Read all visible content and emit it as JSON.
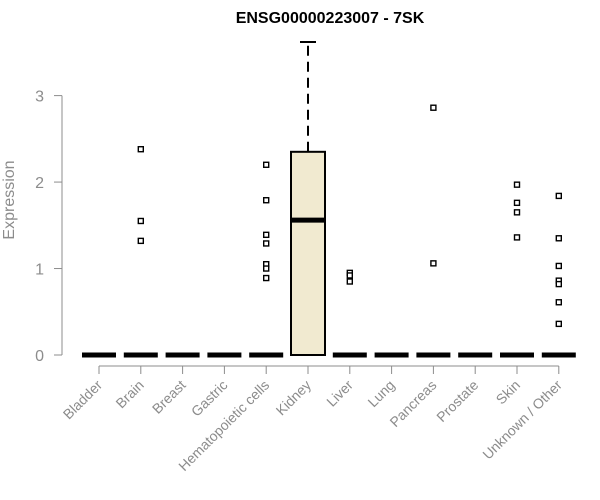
{
  "chart_data": {
    "type": "boxplot",
    "title": "ENSG00000223007 - 7SK",
    "xlabel": "",
    "ylabel": "Expression",
    "ylim": [
      0,
      3.62
    ],
    "yticks": [
      0,
      1,
      2,
      3
    ],
    "grid": false,
    "legend": "none",
    "box_color": "#f1ead0",
    "categories": [
      "Bladder",
      "Brain",
      "Breast",
      "Gastric",
      "Hematopoietic cells",
      "Kidney",
      "Liver",
      "Lung",
      "Pancreas",
      "Prostate",
      "Skin",
      "Unknown / Other"
    ],
    "groups": [
      {
        "name": "Bladder",
        "whisker_low": 0,
        "q1": 0,
        "median": 0,
        "q3": 0,
        "whisker_high": 0,
        "outliers": []
      },
      {
        "name": "Brain",
        "whisker_low": 0,
        "q1": 0,
        "median": 0,
        "q3": 0,
        "whisker_high": 0,
        "outliers": [
          2.38,
          1.55,
          1.32
        ]
      },
      {
        "name": "Breast",
        "whisker_low": 0,
        "q1": 0,
        "median": 0,
        "q3": 0,
        "whisker_high": 0,
        "outliers": []
      },
      {
        "name": "Gastric",
        "whisker_low": 0,
        "q1": 0,
        "median": 0,
        "q3": 0,
        "whisker_high": 0,
        "outliers": []
      },
      {
        "name": "Hematopoietic cells",
        "whisker_low": 0,
        "q1": 0,
        "median": 0,
        "q3": 0,
        "whisker_high": 0,
        "outliers": [
          2.2,
          1.79,
          1.39,
          1.29,
          1.05,
          1.0,
          0.89
        ]
      },
      {
        "name": "Kidney",
        "whisker_low": 0,
        "q1": 0,
        "median": 1.56,
        "q3": 2.35,
        "whisker_high": 3.62,
        "outliers": []
      },
      {
        "name": "Liver",
        "whisker_low": 0,
        "q1": 0,
        "median": 0,
        "q3": 0,
        "whisker_high": 0,
        "outliers": [
          0.95,
          0.92,
          0.85
        ]
      },
      {
        "name": "Lung",
        "whisker_low": 0,
        "q1": 0,
        "median": 0,
        "q3": 0,
        "whisker_high": 0,
        "outliers": []
      },
      {
        "name": "Pancreas",
        "whisker_low": 0,
        "q1": 0,
        "median": 0,
        "q3": 0,
        "whisker_high": 0,
        "outliers": [
          2.86,
          1.06
        ]
      },
      {
        "name": "Prostate",
        "whisker_low": 0,
        "q1": 0,
        "median": 0,
        "q3": 0,
        "whisker_high": 0,
        "outliers": []
      },
      {
        "name": "Skin",
        "whisker_low": 0,
        "q1": 0,
        "median": 0,
        "q3": 0,
        "whisker_high": 0,
        "outliers": [
          1.97,
          1.76,
          1.65,
          1.36
        ]
      },
      {
        "name": "Unknown / Other",
        "whisker_low": 0,
        "q1": 0,
        "median": 0,
        "q3": 0,
        "whisker_high": 0,
        "outliers": [
          1.84,
          1.35,
          1.03,
          0.86,
          0.82,
          0.61,
          0.36
        ]
      }
    ]
  }
}
